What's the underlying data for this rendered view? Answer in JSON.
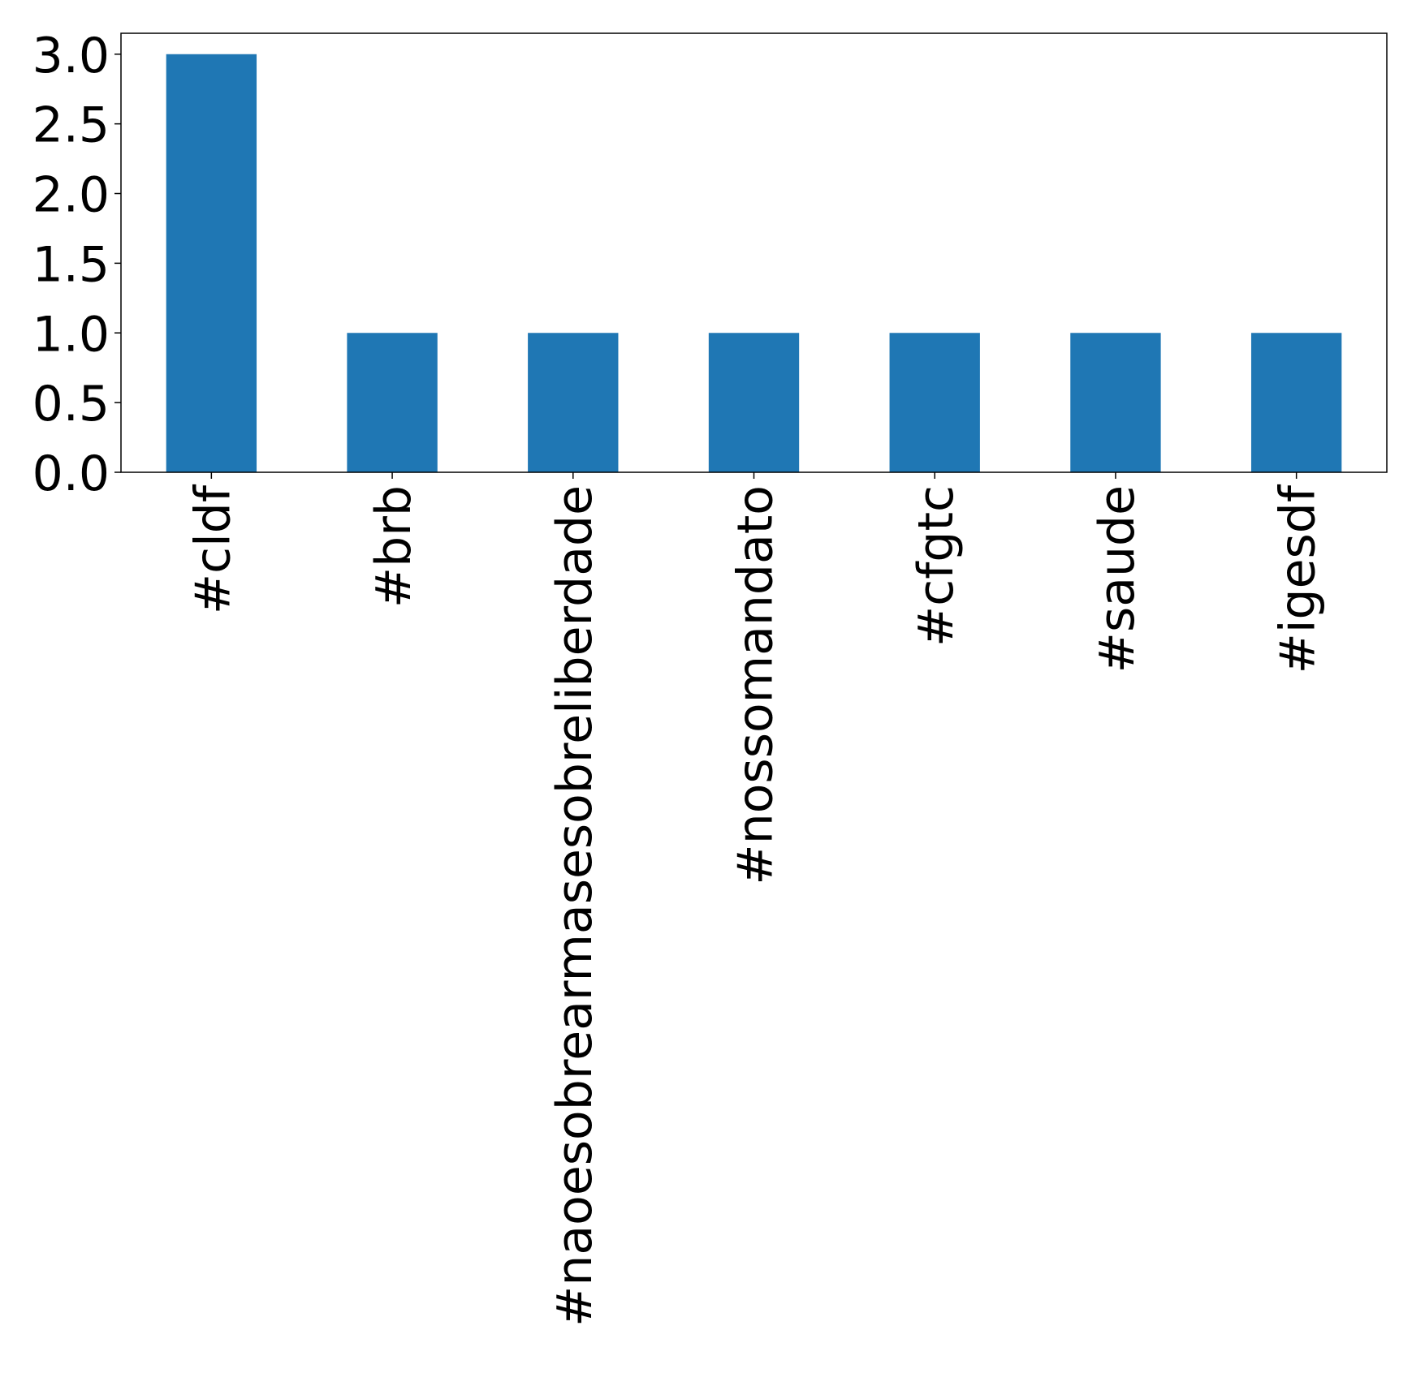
{
  "chart_data": {
    "type": "bar",
    "categories": [
      "#cldf",
      "#brb",
      "#naoesobrearmasesobreliberdade",
      "#nossomandato",
      "#cfgtc",
      "#saude",
      "#igesdf"
    ],
    "values": [
      3,
      1,
      1,
      1,
      1,
      1,
      1
    ],
    "color": "#1f77b4",
    "ylim": [
      0,
      3.15
    ],
    "yticks": [
      {
        "value": 0,
        "label": "0.0"
      },
      0.5,
      {
        "value": 1,
        "label": "1.0"
      },
      1.5,
      {
        "value": 2,
        "label": "2.0"
      },
      2.5,
      {
        "value": 3,
        "label": "3.0"
      }
    ],
    "grid": false
  }
}
